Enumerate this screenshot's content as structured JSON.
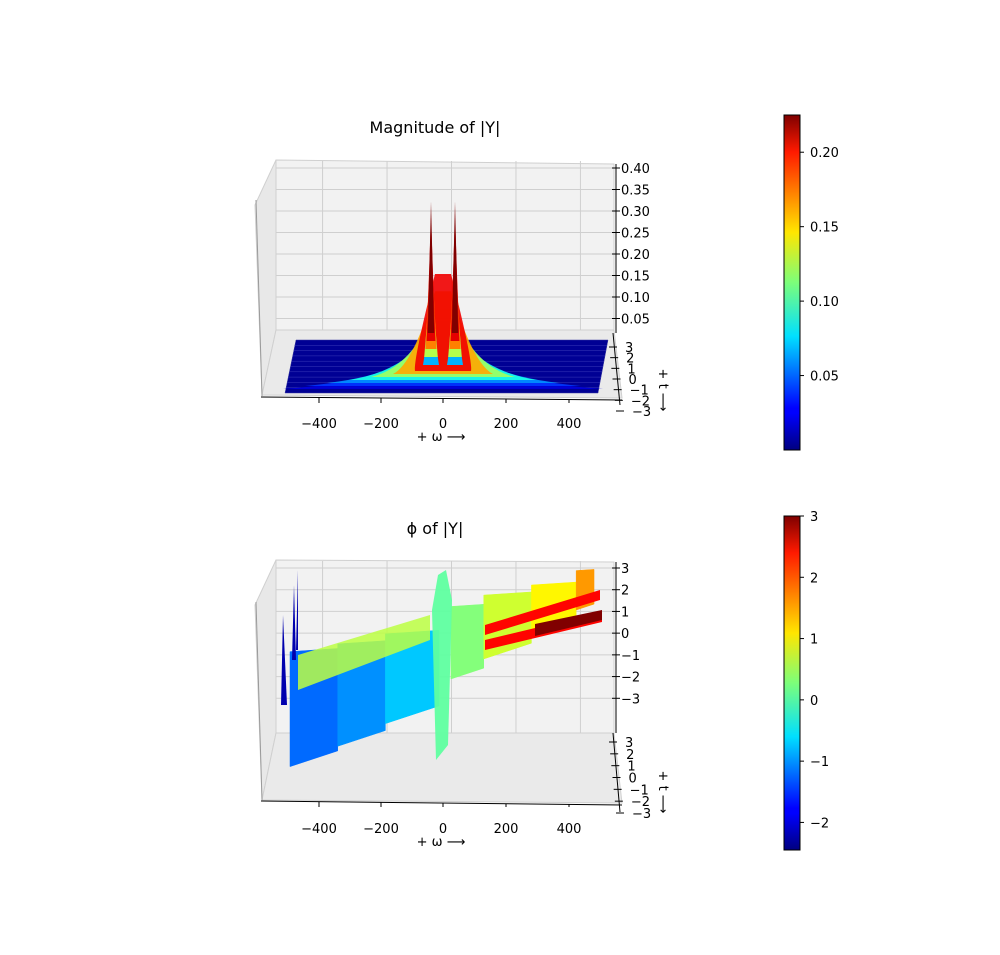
{
  "chart_data": [
    {
      "type": "surface3d",
      "title": "Magnitude of |Y|",
      "xlabel": "+ ω ⟶",
      "ylabel": "+ t ⟶",
      "xlim": [
        -560,
        560
      ],
      "ylim": [
        -3.3,
        3.3
      ],
      "zlim": [
        -0.02,
        0.4
      ],
      "x_ticks": [
        "−400",
        "−200",
        "0",
        "200",
        "400"
      ],
      "y_ticks": [
        "3",
        "2",
        "1",
        "0",
        "−1",
        "−2",
        "−3"
      ],
      "z_ticks": [
        "0.40",
        "0.35",
        "0.30",
        "0.25",
        "0.20",
        "0.15",
        "0.10",
        "0.05"
      ],
      "colormap": "jet",
      "colorbar": {
        "min": 0.0,
        "max": 0.225,
        "ticks": [
          "0.20",
          "0.15",
          "0.10",
          "0.05"
        ]
      },
      "peaks": [
        {
          "omega": -20,
          "value": 0.35
        },
        {
          "omega": 20,
          "value": 0.35
        }
      ],
      "baseline_value": 0.005,
      "grid": true
    },
    {
      "type": "surface3d",
      "title": "ϕ of |Y|",
      "xlabel": "+ ω ⟶",
      "ylabel": "+ t ⟶",
      "xlim": [
        -560,
        560
      ],
      "ylim": [
        -3.3,
        3.3
      ],
      "zlim": [
        -3.3,
        3.3
      ],
      "x_ticks": [
        "−400",
        "−200",
        "0",
        "200",
        "400"
      ],
      "y_ticks": [
        "3",
        "2",
        "1",
        "0",
        "−1",
        "−2",
        "−3"
      ],
      "z_ticks": [
        "3",
        "2",
        "1",
        "0",
        "−1",
        "−2",
        "−3"
      ],
      "colormap": "jet",
      "colorbar": {
        "min": -2.45,
        "max": 3.0,
        "ticks": [
          "3",
          "2",
          "1",
          "0",
          "−1",
          "−2"
        ]
      },
      "phase_bands": [
        {
          "omega_from": -520,
          "omega_to": -360,
          "phase": -1.2
        },
        {
          "omega_from": -360,
          "omega_to": -200,
          "phase": -1.0
        },
        {
          "omega_from": -200,
          "omega_to": -20,
          "phase": -0.7
        },
        {
          "omega_from": 20,
          "omega_to": 130,
          "phase": 0.3
        },
        {
          "omega_from": 130,
          "omega_to": 290,
          "phase": 0.7
        },
        {
          "omega_from": 290,
          "omega_to": 440,
          "phase": 1.0
        },
        {
          "omega_from": 440,
          "omega_to": 500,
          "phase": 1.5
        }
      ],
      "grid": true
    }
  ]
}
